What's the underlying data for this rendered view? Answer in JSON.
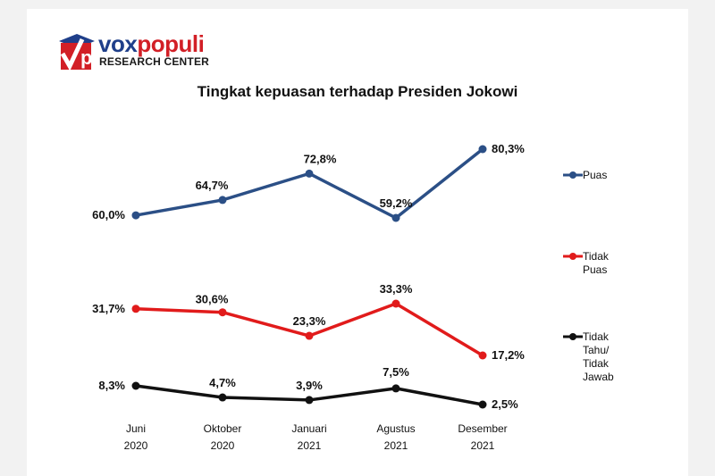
{
  "logo": {
    "name_part1": "vox",
    "name_part2": "populi",
    "subtitle": "RESEARCH CENTER",
    "mark_letter": "p"
  },
  "colors": {
    "puas": "#2b4f86",
    "tidak_puas": "#e11b1b",
    "tidak_tahu": "#111111",
    "brand_blue": "#1f3f8a",
    "brand_red": "#d21f26"
  },
  "chart_data": {
    "type": "line",
    "title": "Tingkat kepuasan terhadap Presiden Jokowi",
    "categories": [
      [
        "Juni",
        "2020"
      ],
      [
        "Oktober",
        "2020"
      ],
      [
        "Januari",
        "2021"
      ],
      [
        "Agustus",
        "2021"
      ],
      [
        "Desember",
        "2021"
      ]
    ],
    "series": [
      {
        "key": "puas",
        "legend": [
          "Puas"
        ],
        "values": [
          60.0,
          64.7,
          72.8,
          59.2,
          80.3
        ],
        "labels": [
          "60,0%",
          "64,7%",
          "72,8%",
          "59,2%",
          "80,3%"
        ]
      },
      {
        "key": "tidak_puas",
        "legend": [
          "Tidak",
          "Puas"
        ],
        "values": [
          31.7,
          30.6,
          23.3,
          33.3,
          17.2
        ],
        "labels": [
          "31,7%",
          "30,6%",
          "23,3%",
          "33,3%",
          "17,2%"
        ]
      },
      {
        "key": "tidak_tahu",
        "legend": [
          "Tidak",
          "Tahu/",
          "Tidak",
          "Jawab"
        ],
        "values": [
          8.3,
          4.7,
          3.9,
          7.5,
          2.5
        ],
        "labels": [
          "8,3%",
          "4,7%",
          "3,9%",
          "7,5%",
          "2,5%"
        ]
      }
    ],
    "xlabel": "",
    "ylabel": "",
    "grid": false,
    "legend_position": "right"
  }
}
